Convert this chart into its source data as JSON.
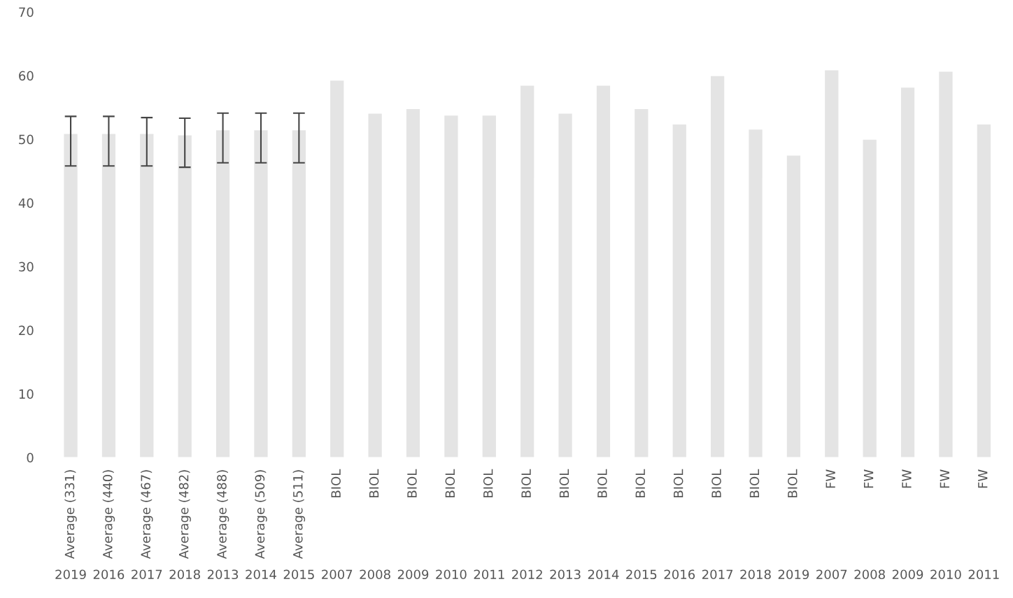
{
  "chart_data": {
    "type": "bar",
    "categories": [
      "Average (331)\n2019",
      "Average (440)\n2016",
      "Average (467)\n2017",
      "Average (482)\n2018",
      "Average (488)\n2013",
      "Average (509)\n2014",
      "Average (511)\n2015",
      "BIOL\n2007",
      "BIOL\n2008",
      "BIOL\n2009",
      "BIOL\n2010",
      "BIOL\n2011",
      "BIOL\n2012",
      "BIOL\n2013",
      "BIOL\n2014",
      "BIOL\n2015",
      "BIOL\n2016",
      "BIOL\n2017",
      "BIOL\n2018",
      "BIOL\n2019",
      "FW\n2007",
      "FW\n2008",
      "FW\n2009",
      "FW\n2010",
      "FW\n2011"
    ],
    "values": [
      50.9,
      50.9,
      50.9,
      50.7,
      51.5,
      51.5,
      51.5,
      59.3,
      54.1,
      54.8,
      53.8,
      53.8,
      58.5,
      54.1,
      58.5,
      54.8,
      52.4,
      60,
      51.6,
      47.5,
      60.9,
      50,
      58.2,
      60.7,
      52.4
    ],
    "errors": [
      [
        45.8,
        53.6
      ],
      [
        45.8,
        53.6
      ],
      [
        45.8,
        53.4
      ],
      [
        45.6,
        53.3
      ],
      [
        46.3,
        54.1
      ],
      [
        46.3,
        54.1
      ],
      [
        46.3,
        54.1
      ],
      null,
      null,
      null,
      null,
      null,
      null,
      null,
      null,
      null,
      null,
      null,
      null,
      null,
      null,
      null,
      null,
      null,
      null
    ],
    "color": "#e4e4e4",
    "ylim": [
      0,
      70
    ],
    "yticks": [
      0,
      10,
      20,
      30,
      40,
      50,
      60,
      70
    ],
    "grid": false
  }
}
